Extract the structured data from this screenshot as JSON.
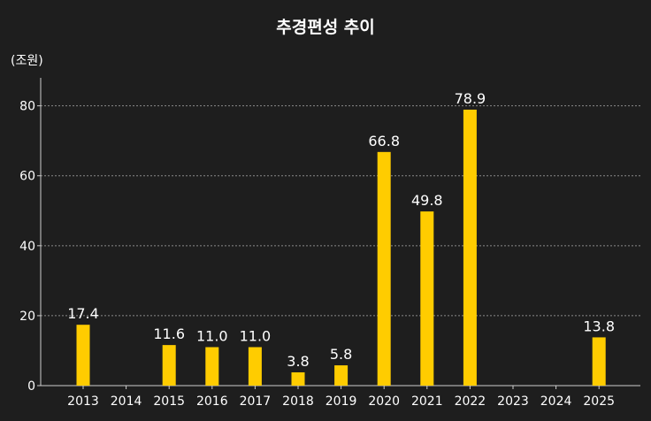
{
  "chart_data": {
    "type": "bar",
    "title": "추경편성 추이",
    "y_unit_label": "(조원)",
    "categories": [
      "2013",
      "2014",
      "2015",
      "2016",
      "2017",
      "2018",
      "2019",
      "2020",
      "2021",
      "2022",
      "2023",
      "2024",
      "2025"
    ],
    "values": [
      17.4,
      null,
      11.6,
      11.0,
      11.0,
      3.8,
      5.8,
      66.8,
      49.8,
      78.9,
      null,
      null,
      13.8
    ],
    "data_labels": [
      "17.4",
      "",
      "11.6",
      "11.0",
      "11.0",
      "3.8",
      "5.8",
      "66.8",
      "49.8",
      "78.9",
      "",
      "",
      "13.8"
    ],
    "yticks": [
      0,
      20,
      40,
      60,
      80
    ],
    "ylim": [
      0,
      88
    ],
    "grid": true,
    "bar_color": "#ffcc00",
    "background": "#1e1e1e"
  }
}
